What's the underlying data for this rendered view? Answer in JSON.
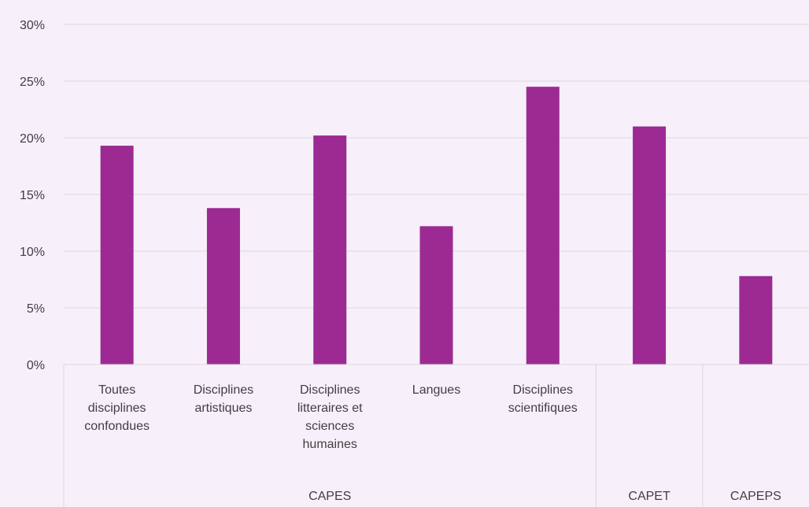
{
  "chart_data": {
    "type": "bar",
    "title": "",
    "xlabel": "",
    "ylabel": "",
    "ylim": [
      0,
      0.3
    ],
    "y_ticks": [
      0,
      0.05,
      0.1,
      0.15,
      0.2,
      0.25,
      0.3
    ],
    "y_tick_labels": [
      "0%",
      "5%",
      "10%",
      "15%",
      "20%",
      "25%",
      "30%"
    ],
    "grid": true,
    "legend": "none",
    "bar_color": "#9c2a92",
    "categories": [
      {
        "label": [
          "Toutes",
          "disciplines",
          "confondues"
        ],
        "value": 0.193
      },
      {
        "label": [
          "Disciplines",
          "artistiques"
        ],
        "value": 0.138
      },
      {
        "label": [
          "Disciplines",
          "litteraires et",
          "sciences",
          "humaines"
        ],
        "value": 0.202
      },
      {
        "label": [
          "Langues"
        ],
        "value": 0.122
      },
      {
        "label": [
          "Disciplines",
          "scientifiques"
        ],
        "value": 0.245
      },
      {
        "label": [],
        "value": 0.21
      },
      {
        "label": [],
        "value": 0.078
      }
    ],
    "groups": [
      {
        "label": "CAPES",
        "span": 5
      },
      {
        "label": "CAPET",
        "span": 1
      },
      {
        "label": "CAPEPS",
        "span": 1
      }
    ]
  }
}
